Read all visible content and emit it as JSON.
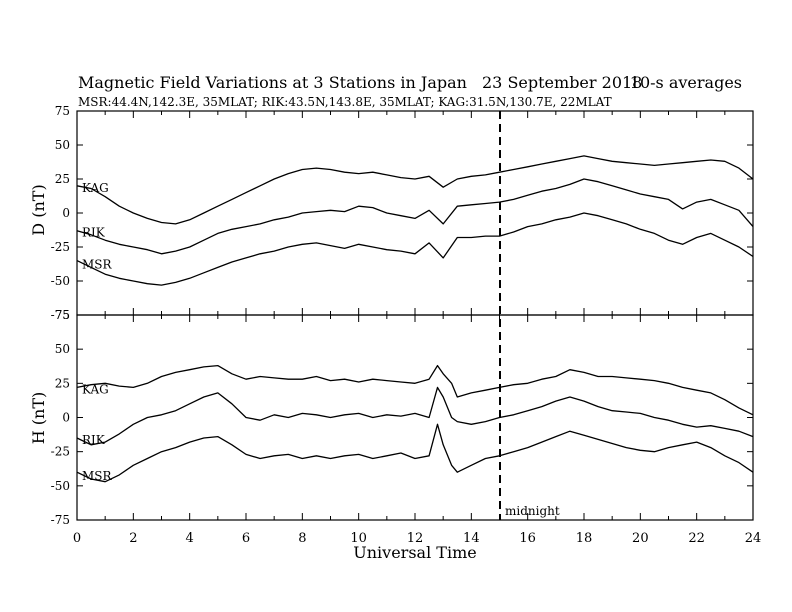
{
  "header": {
    "title": "Magnetic Field Variations at 3 Stations in Japan",
    "date": "23 September 2018",
    "averaging": "10-s averages",
    "stations": "MSR:44.4N,142.3E, 35MLAT;  RIK:43.5N,143.8E, 35MLAT;  KAG:31.5N,130.7E, 22MLAT"
  },
  "chart_data": [
    {
      "type": "line",
      "panel": "D",
      "ylabel": "D (nT)",
      "ylim": [
        -75,
        75
      ],
      "yticks": [
        -75,
        -50,
        -25,
        0,
        25,
        50,
        75
      ],
      "xlim": [
        0,
        24
      ],
      "xticks": [
        0,
        2,
        4,
        6,
        8,
        10,
        12,
        14,
        16,
        18,
        20,
        22,
        24
      ],
      "series": [
        {
          "name": "KAG",
          "x": [
            0,
            0.5,
            1,
            1.5,
            2,
            2.5,
            3,
            3.5,
            4,
            4.5,
            5,
            5.5,
            6,
            6.5,
            7,
            7.5,
            8,
            8.5,
            9,
            9.5,
            10,
            10.5,
            11,
            11.5,
            12,
            12.5,
            13,
            13.5,
            14,
            14.5,
            15,
            15.5,
            16,
            16.5,
            17,
            17.5,
            18,
            18.5,
            19,
            19.5,
            20,
            20.5,
            21,
            21.5,
            22,
            22.5,
            23,
            23.5,
            24
          ],
          "y": [
            20,
            18,
            12,
            5,
            0,
            -4,
            -7,
            -8,
            -5,
            0,
            5,
            10,
            15,
            20,
            25,
            29,
            32,
            33,
            32,
            30,
            29,
            30,
            28,
            26,
            25,
            27,
            19,
            25,
            27,
            28,
            30,
            32,
            34,
            36,
            38,
            40,
            42,
            40,
            38,
            37,
            36,
            35,
            36,
            37,
            38,
            39,
            38,
            33,
            25
          ]
        },
        {
          "name": "RIK",
          "x": [
            0,
            0.5,
            1,
            1.5,
            2,
            2.5,
            3,
            3.5,
            4,
            4.5,
            5,
            5.5,
            6,
            6.5,
            7,
            7.5,
            8,
            8.5,
            9,
            9.5,
            10,
            10.5,
            11,
            11.5,
            12,
            12.5,
            13,
            13.5,
            14,
            14.5,
            15,
            15.5,
            16,
            16.5,
            17,
            17.5,
            18,
            18.5,
            19,
            19.5,
            20,
            20.5,
            21,
            21.5,
            22,
            22.5,
            23,
            23.5,
            24
          ],
          "y": [
            -13,
            -16,
            -20,
            -23,
            -25,
            -27,
            -30,
            -28,
            -25,
            -20,
            -15,
            -12,
            -10,
            -8,
            -5,
            -3,
            0,
            1,
            2,
            1,
            5,
            4,
            0,
            -2,
            -4,
            2,
            -8,
            5,
            6,
            7,
            8,
            10,
            13,
            16,
            18,
            21,
            25,
            23,
            20,
            17,
            14,
            12,
            10,
            3,
            8,
            10,
            6,
            2,
            -10
          ]
        },
        {
          "name": "MSR",
          "x": [
            0,
            0.5,
            1,
            1.5,
            2,
            2.5,
            3,
            3.5,
            4,
            4.5,
            5,
            5.5,
            6,
            6.5,
            7,
            7.5,
            8,
            8.5,
            9,
            9.5,
            10,
            10.5,
            11,
            11.5,
            12,
            12.5,
            13,
            13.5,
            14,
            14.5,
            15,
            15.5,
            16,
            16.5,
            17,
            17.5,
            18,
            18.5,
            19,
            19.5,
            20,
            20.5,
            21,
            21.5,
            22,
            22.5,
            23,
            23.5,
            24
          ],
          "y": [
            -35,
            -40,
            -45,
            -48,
            -50,
            -52,
            -53,
            -51,
            -48,
            -44,
            -40,
            -36,
            -33,
            -30,
            -28,
            -25,
            -23,
            -22,
            -24,
            -26,
            -23,
            -25,
            -27,
            -28,
            -30,
            -22,
            -33,
            -18,
            -18,
            -17,
            -17,
            -14,
            -10,
            -8,
            -5,
            -3,
            0,
            -2,
            -5,
            -8,
            -12,
            -15,
            -20,
            -23,
            -18,
            -15,
            -20,
            -25,
            -32
          ]
        }
      ]
    },
    {
      "type": "line",
      "panel": "H",
      "ylabel": "H (nT)",
      "ylim": [
        -75,
        75
      ],
      "yticks": [
        -75,
        -50,
        -25,
        0,
        25,
        50,
        75
      ],
      "xlim": [
        0,
        24
      ],
      "xticks": [
        0,
        2,
        4,
        6,
        8,
        10,
        12,
        14,
        16,
        18,
        20,
        22,
        24
      ],
      "xlabel": "Universal Time",
      "annotation": "midnight",
      "marker_x": 15,
      "series": [
        {
          "name": "KAG",
          "x": [
            0,
            0.5,
            1,
            1.5,
            2,
            2.5,
            3,
            3.5,
            4,
            4.5,
            5,
            5.5,
            6,
            6.5,
            7,
            7.5,
            8,
            8.5,
            9,
            9.5,
            10,
            10.5,
            11,
            11.5,
            12,
            12.5,
            12.8,
            13,
            13.3,
            13.5,
            14,
            14.5,
            15,
            15.5,
            16,
            16.5,
            17,
            17.5,
            18,
            18.5,
            19,
            19.5,
            20,
            20.5,
            21,
            21.5,
            22,
            22.5,
            23,
            23.5,
            24
          ],
          "y": [
            22,
            24,
            25,
            23,
            22,
            25,
            30,
            33,
            35,
            37,
            38,
            32,
            28,
            30,
            29,
            28,
            28,
            30,
            27,
            28,
            26,
            28,
            27,
            26,
            25,
            28,
            38,
            32,
            25,
            15,
            18,
            20,
            22,
            24,
            25,
            28,
            30,
            35,
            33,
            30,
            30,
            29,
            28,
            27,
            25,
            22,
            20,
            18,
            13,
            7,
            2
          ]
        },
        {
          "name": "RIK",
          "x": [
            0,
            0.5,
            1,
            1.5,
            2,
            2.5,
            3,
            3.5,
            4,
            4.5,
            5,
            5.5,
            6,
            6.5,
            7,
            7.5,
            8,
            8.5,
            9,
            9.5,
            10,
            10.5,
            11,
            11.5,
            12,
            12.5,
            12.8,
            13,
            13.3,
            13.5,
            14,
            14.5,
            15,
            15.5,
            16,
            16.5,
            17,
            17.5,
            18,
            18.5,
            19,
            19.5,
            20,
            20.5,
            21,
            21.5,
            22,
            22.5,
            23,
            23.5,
            24
          ],
          "y": [
            -15,
            -20,
            -18,
            -12,
            -5,
            0,
            2,
            5,
            10,
            15,
            18,
            10,
            0,
            -2,
            2,
            0,
            3,
            2,
            0,
            2,
            3,
            0,
            2,
            1,
            3,
            0,
            22,
            15,
            0,
            -3,
            -5,
            -3,
            0,
            2,
            5,
            8,
            12,
            15,
            12,
            8,
            5,
            4,
            3,
            0,
            -2,
            -5,
            -7,
            -6,
            -8,
            -10,
            -14
          ]
        },
        {
          "name": "MSR",
          "x": [
            0,
            0.5,
            1,
            1.5,
            2,
            2.5,
            3,
            3.5,
            4,
            4.5,
            5,
            5.5,
            6,
            6.5,
            7,
            7.5,
            8,
            8.5,
            9,
            9.5,
            10,
            10.5,
            11,
            11.5,
            12,
            12.5,
            12.8,
            13,
            13.3,
            13.5,
            14,
            14.5,
            15,
            15.5,
            16,
            16.5,
            17,
            17.5,
            18,
            18.5,
            19,
            19.5,
            20,
            20.5,
            21,
            21.5,
            22,
            22.5,
            23,
            23.5,
            24
          ],
          "y": [
            -40,
            -45,
            -47,
            -42,
            -35,
            -30,
            -25,
            -22,
            -18,
            -15,
            -14,
            -20,
            -27,
            -30,
            -28,
            -27,
            -30,
            -28,
            -30,
            -28,
            -27,
            -30,
            -28,
            -26,
            -30,
            -28,
            -5,
            -20,
            -35,
            -40,
            -35,
            -30,
            -28,
            -25,
            -22,
            -18,
            -14,
            -10,
            -13,
            -16,
            -19,
            -22,
            -24,
            -25,
            -22,
            -20,
            -18,
            -22,
            -28,
            -33,
            -40
          ]
        }
      ]
    }
  ]
}
